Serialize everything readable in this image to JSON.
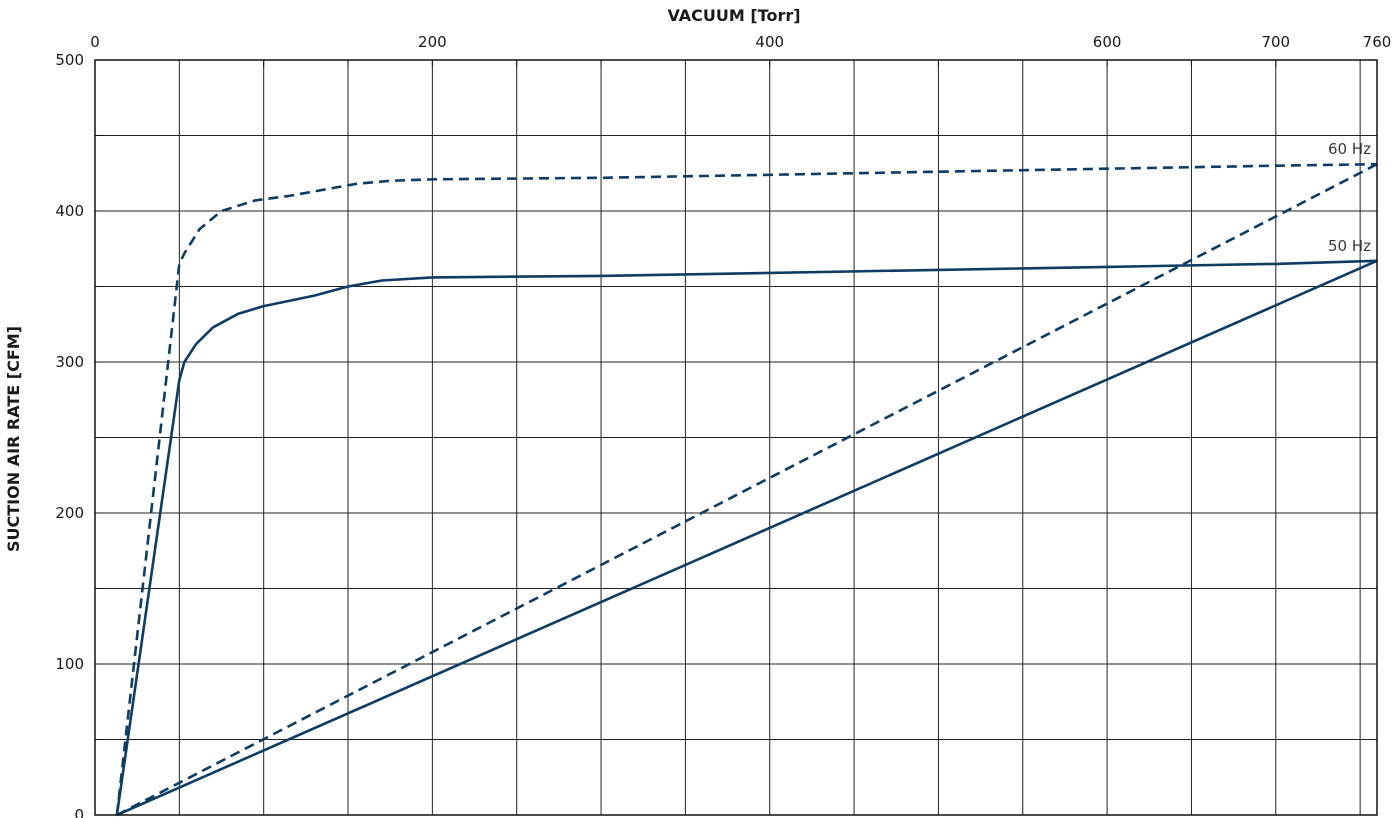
{
  "chart_data": {
    "type": "line",
    "xlabel": "VACUUM  [Torr]",
    "ylabel": "SUCTION AIR RATE  [CFM]",
    "xlim": [
      0,
      760
    ],
    "ylim": [
      0,
      500
    ],
    "x_ticks": [
      0,
      200,
      400,
      600,
      700,
      760
    ],
    "y_ticks": [
      0,
      100,
      200,
      300,
      400,
      500
    ],
    "x_minor_ticks": [
      100,
      150,
      250,
      300,
      500,
      650
    ],
    "y_minor_ticks": [
      50,
      150,
      250,
      350,
      450
    ],
    "x_axis_position": "top",
    "grid": true,
    "line_color": "#0f3c62",
    "grid_color": "#222222",
    "series": [
      {
        "name": "60 Hz",
        "style": "dashed",
        "x": [
          13,
          50,
          53,
          62,
          75,
          95,
          115,
          155,
          175,
          200,
          300,
          400,
          500,
          600,
          700,
          760
        ],
        "y": [
          0,
          365,
          372,
          388,
          400,
          407,
          410,
          418,
          420,
          421,
          422,
          424,
          426,
          428,
          430,
          431
        ]
      },
      {
        "name": "60 Hz",
        "style": "dashed",
        "x": [
          13,
          760
        ],
        "y": [
          0,
          431
        ]
      },
      {
        "name": "50 Hz",
        "style": "solid",
        "x": [
          13,
          50,
          53,
          60,
          70,
          85,
          100,
          130,
          150,
          170,
          200,
          300,
          400,
          500,
          600,
          700,
          760
        ],
        "y": [
          0,
          288,
          300,
          312,
          323,
          332,
          337,
          344,
          350,
          354,
          356,
          357,
          359,
          361,
          363,
          365,
          367
        ]
      },
      {
        "name": "50 Hz",
        "style": "solid",
        "x": [
          13,
          760
        ],
        "y": [
          0,
          367
        ]
      }
    ]
  }
}
